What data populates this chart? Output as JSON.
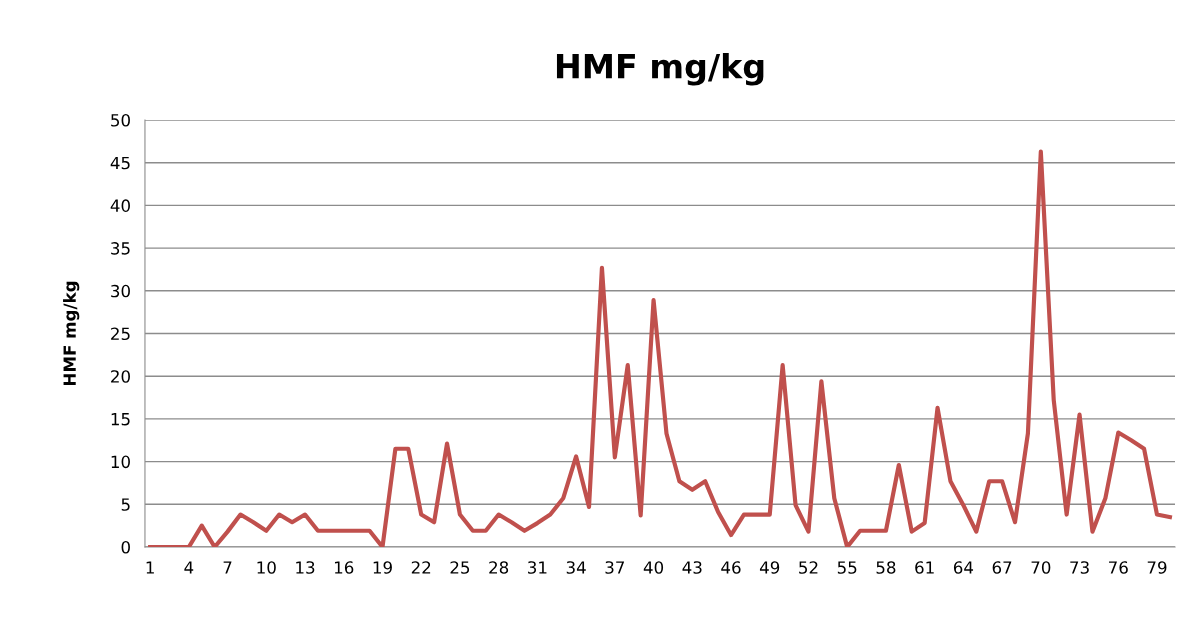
{
  "chart_data": {
    "type": "line",
    "title": "HMF mg/kg",
    "ylabel": "HMF mg/kg",
    "categories": [
      "1",
      null,
      null,
      "4",
      null,
      null,
      "7",
      null,
      null,
      "10",
      null,
      null,
      "13",
      null,
      null,
      "16",
      null,
      null,
      "19",
      null,
      null,
      "22",
      null,
      null,
      "25",
      null,
      null,
      "28",
      null,
      null,
      "31",
      null,
      null,
      "34",
      null,
      null,
      "37",
      null,
      null,
      "40",
      null,
      null,
      "43",
      null,
      null,
      "46",
      null,
      null,
      "49",
      null,
      null,
      "52",
      null,
      null,
      "55",
      null,
      null,
      "58",
      null,
      null,
      "61",
      null,
      null,
      "64",
      null,
      null,
      "67",
      null,
      null,
      "70",
      null,
      null,
      "73",
      null,
      null,
      "76",
      null,
      null,
      "79",
      null
    ],
    "series": [
      {
        "color": "#c0504d",
        "values": [
          0,
          0,
          0,
          0,
          2.5,
          0,
          1.8,
          3.8,
          2.9,
          1.9,
          3.8,
          2.9,
          3.8,
          1.9,
          1.9,
          1.9,
          1.9,
          1.9,
          0,
          11.5,
          11.5,
          3.8,
          2.9,
          12.1,
          3.8,
          1.9,
          1.9,
          3.8,
          2.9,
          1.9,
          2.8,
          3.8,
          5.7,
          10.6,
          4.7,
          32.7,
          10.5,
          21.3,
          3.7,
          28.9,
          13.3,
          7.7,
          6.7,
          7.7,
          4.1,
          1.4,
          3.8,
          3.8,
          3.8,
          21.3,
          4.9,
          1.8,
          19.4,
          5.7,
          0,
          1.9,
          1.9,
          1.9,
          9.6,
          1.8,
          2.8,
          16.3,
          7.7,
          4.9,
          1.8,
          7.7,
          7.7,
          2.9,
          13.3,
          46.3,
          17.2,
          3.8,
          15.5,
          1.8,
          5.7,
          13.4,
          12.5,
          11.5,
          3.8,
          3.5
        ]
      }
    ],
    "ylim": [
      0,
      50
    ],
    "yticks": [
      0,
      5,
      10,
      15,
      20,
      25,
      30,
      35,
      40,
      45,
      50
    ],
    "grid": "y",
    "marker": "none",
    "line_style": "solid",
    "legend": false
  }
}
